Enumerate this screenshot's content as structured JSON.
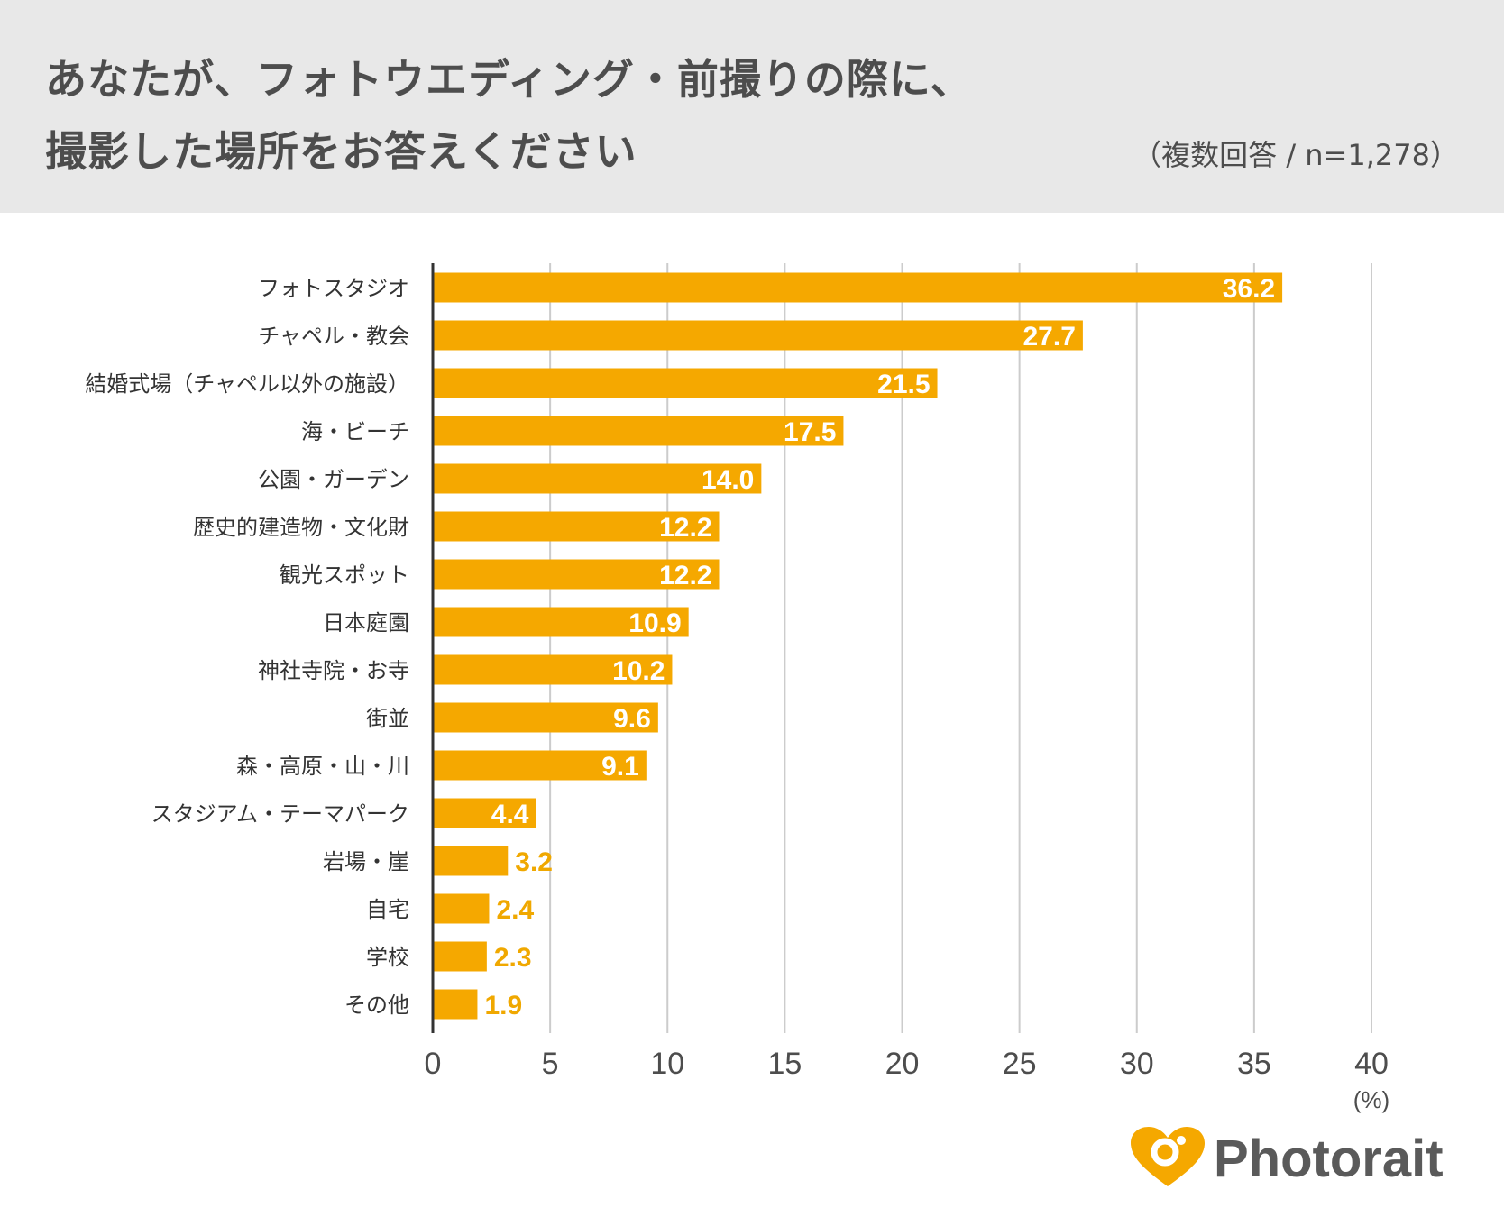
{
  "header": {
    "title_line1": "あなたが、フォトウエディング・前撮りの際に、",
    "title_line2": "撮影した場所をお答えください",
    "sample_note": "（複数回答 / n=1,278）"
  },
  "brand": {
    "name": "Photorait",
    "accent_color": "#f0a800",
    "text_color": "#5a5a5a"
  },
  "chart_data": {
    "type": "bar",
    "orientation": "horizontal",
    "title": "あなたが、フォトウエディング・前撮りの際に、撮影した場所をお答えください",
    "unit_label": "(%)",
    "xlim": [
      0,
      40
    ],
    "ticks": [
      0,
      5,
      10,
      15,
      20,
      25,
      30,
      35,
      40
    ],
    "grid": true,
    "bar_color": "#f5a800",
    "categories": [
      "フォトスタジオ",
      "チャペル・教会",
      "結婚式場（チャペル以外の施設）",
      "海・ビーチ",
      "公園・ガーデン",
      "歴史的建造物・文化財",
      "観光スポット",
      "日本庭園",
      "神社寺院・お寺",
      "街並",
      "森・高原・山・川",
      "スタジアム・テーマパーク",
      "岩場・崖",
      "自宅",
      "学校",
      "その他"
    ],
    "values": [
      36.2,
      27.7,
      21.5,
      17.5,
      14.0,
      12.2,
      12.2,
      10.9,
      10.2,
      9.6,
      9.1,
      4.4,
      3.2,
      2.4,
      2.3,
      1.9
    ],
    "value_labels": [
      "36.2",
      "27.7",
      "21.5",
      "17.5",
      "14.0",
      "12.2",
      "12.2",
      "10.9",
      "10.2",
      "9.6",
      "9.1",
      "4.4",
      "3.2",
      "2.4",
      "2.3",
      "1.9"
    ]
  }
}
